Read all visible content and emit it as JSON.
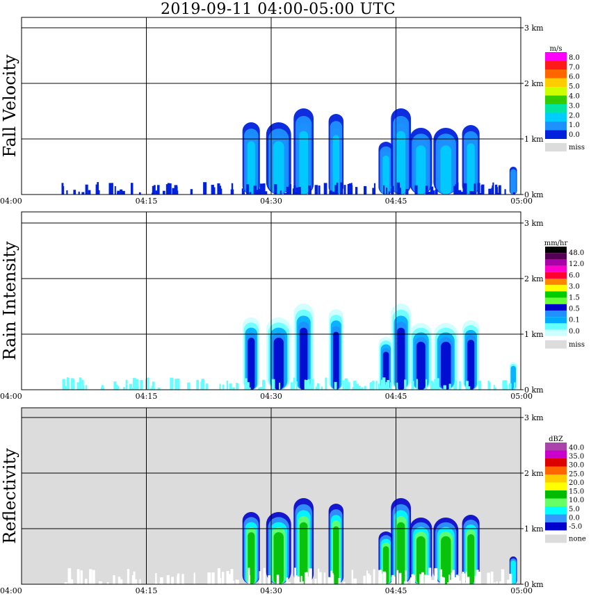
{
  "title": "2019-09-11   04:00-05:00 UTC",
  "chart_data": [
    {
      "type": "heatmap",
      "ylabel": "Fall Velocity",
      "xticks": [
        "04:00",
        "04:15",
        "04:30",
        "04:45",
        "05:00"
      ],
      "yticks": [
        "0 km",
        "1 km",
        "2 km",
        "3 km"
      ],
      "legend": {
        "unit": "m/s",
        "labels": [
          "8.0",
          "7.0",
          "6.0",
          "5.0",
          "4.0",
          "3.0",
          "2.0",
          "1.0",
          "0.0"
        ],
        "colors": [
          "#ff00ff",
          "#ff1a1a",
          "#ff6600",
          "#ffcc00",
          "#ccff00",
          "#33cc00",
          "#00e6a0",
          "#00ccff",
          "#1e90ff",
          "#0022dd"
        ],
        "missing_label": "miss",
        "missing_color": "#dcdcdc"
      },
      "background": "#ffffff"
    },
    {
      "type": "heatmap",
      "ylabel": "Rain Intensity",
      "xticks": [
        "04:00",
        "04:15",
        "04:30",
        "04:45",
        "05:00"
      ],
      "yticks": [
        "0 km",
        "1 km",
        "2 km",
        "3 km"
      ],
      "legend": {
        "unit": "mm/hr",
        "labels": [
          "48.0",
          "12.0",
          "6.0",
          "3.0",
          "1.5",
          "0.5",
          "0.1",
          "0.0"
        ],
        "colors": [
          "#000000",
          "#550055",
          "#aa00aa",
          "#ff00cc",
          "#ff0033",
          "#ff8800",
          "#ffff00",
          "#00cc00",
          "#66ff33",
          "#0000cc",
          "#1e90ff",
          "#00aaff",
          "#66ffff",
          "#ccffff"
        ],
        "missing_label": "miss",
        "missing_color": "#dcdcdc"
      },
      "background": "#ffffff"
    },
    {
      "type": "heatmap",
      "ylabel": "Reflectivity",
      "xticks": [
        "04:00",
        "04:15",
        "04:30",
        "04:45",
        "05:00"
      ],
      "yticks": [
        "0 km",
        "1 km",
        "2 km",
        "3 km"
      ],
      "legend": {
        "unit": "dBZ",
        "labels": [
          "40.0",
          "35.0",
          "30.0",
          "25.0",
          "20.0",
          "15.0",
          "10.0",
          "5.0",
          "0.0",
          "-5.0"
        ],
        "colors": [
          "#aa44aa",
          "#cc00cc",
          "#dd0000",
          "#ff6600",
          "#ffcc00",
          "#ffff00",
          "#00bb00",
          "#66ff66",
          "#00ffff",
          "#3399ff",
          "#0000cc"
        ],
        "missing_label": "none",
        "missing_color": "#dcdcdc"
      },
      "background": "#dcdcdc"
    }
  ]
}
